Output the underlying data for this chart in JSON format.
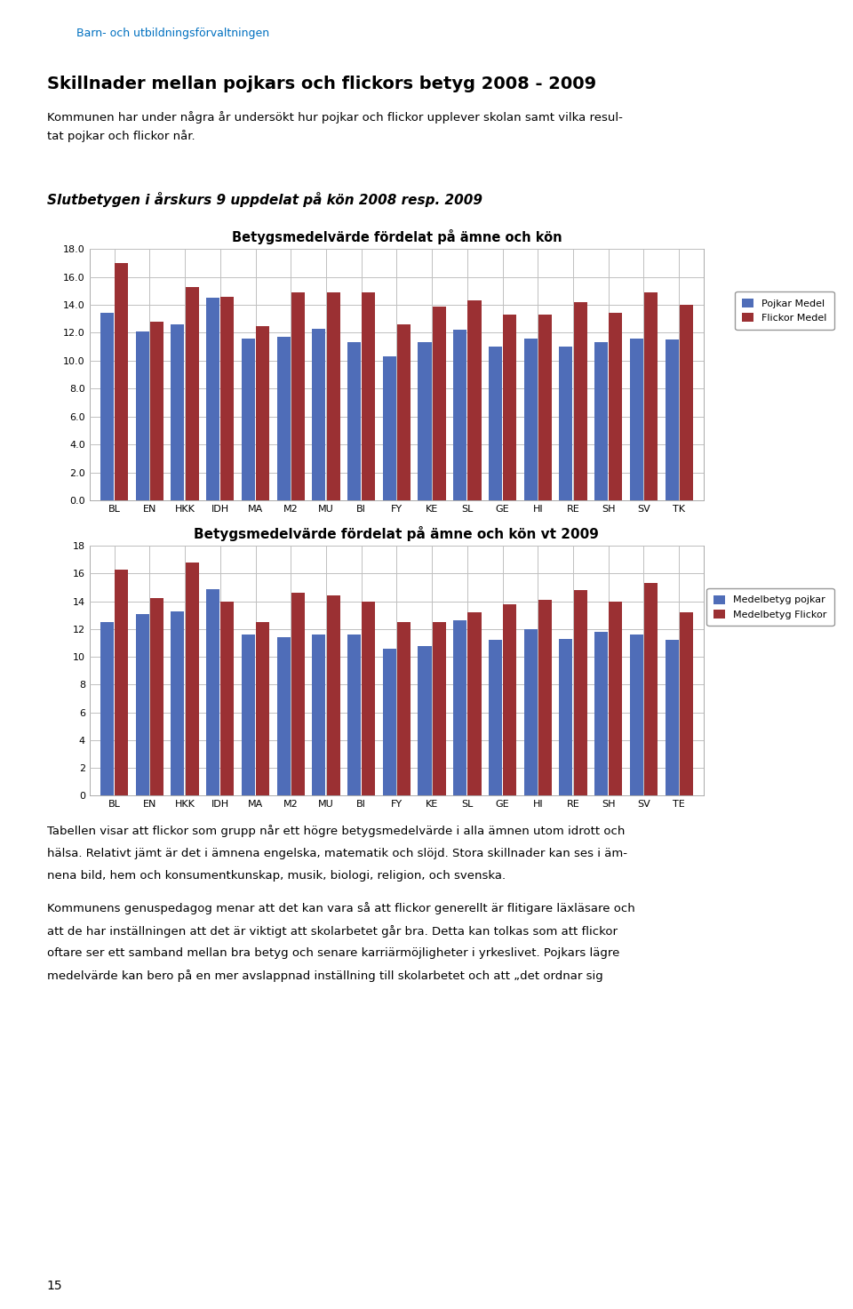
{
  "chart1": {
    "title": "Betygsmedelvärde fördelat på ämne och kön",
    "categories": [
      "BL",
      "EN",
      "HKK",
      "IDH",
      "MA",
      "M2",
      "MU",
      "BI",
      "FY",
      "KE",
      "SL",
      "GE",
      "HI",
      "RE",
      "SH",
      "SV",
      "TK"
    ],
    "pojkar": [
      13.4,
      12.1,
      12.6,
      14.5,
      11.6,
      11.7,
      12.3,
      11.3,
      10.3,
      11.3,
      12.2,
      11.0,
      11.6,
      11.0,
      11.3,
      11.6,
      11.5
    ],
    "flickor": [
      17.0,
      12.8,
      15.3,
      14.6,
      12.5,
      14.9,
      14.9,
      14.9,
      12.6,
      13.9,
      14.3,
      13.3,
      13.3,
      14.2,
      13.4,
      14.9,
      14.0
    ],
    "pojkar_color": "#4F6DB8",
    "flickor_color": "#9B3033",
    "legend_pojkar": "Pojkar Medel",
    "legend_flickor": "Flickor Medel",
    "ylim": [
      0,
      18
    ],
    "yticks": [
      0.0,
      2.0,
      4.0,
      6.0,
      8.0,
      10.0,
      12.0,
      14.0,
      16.0,
      18.0
    ]
  },
  "chart2": {
    "title": "Betygsmedelvärde fördelat på ämne och kön vt 2009",
    "categories": [
      "BL",
      "EN",
      "HKK",
      "IDH",
      "MA",
      "M2",
      "MU",
      "BI",
      "FY",
      "KE",
      "SL",
      "GE",
      "HI",
      "RE",
      "SH",
      "SV",
      "TE"
    ],
    "pojkar": [
      12.5,
      13.1,
      13.3,
      14.9,
      11.6,
      11.4,
      11.6,
      11.6,
      10.6,
      10.8,
      12.6,
      11.2,
      12.0,
      11.3,
      11.8,
      11.6,
      11.2
    ],
    "flickor": [
      16.3,
      14.2,
      16.8,
      14.0,
      12.5,
      14.6,
      14.4,
      14.0,
      12.5,
      12.5,
      13.2,
      13.8,
      14.1,
      14.8,
      14.0,
      15.3,
      13.2
    ],
    "pojkar_color": "#4F6DB8",
    "flickor_color": "#9B3033",
    "legend_pojkar": "Medelbetyg pojkar",
    "legend_flickor": "Medelbetyg Flickor",
    "ylim": [
      0,
      18
    ],
    "yticks": [
      0,
      2,
      4,
      6,
      8,
      10,
      12,
      14,
      16,
      18
    ]
  },
  "header_text": "Barn- och utbildningsförvaltningen",
  "page_title": "Skillnader mellan pojkars och flickors betyg 2008 - 2009",
  "subtitle": "Kommunen har under några år undersökt hur pojkar och flickor upplever skolan samt vilka resul-\ntat pojkar och flickor når.",
  "section_title": "Slutbetygen i årskurs 9 uppdelat på kön 2008 resp. 2009",
  "footer_para1_line1": "Tabellen visar att flickor som grupp når ett högre betygsmedelvärde i alla ämnen utom idrott och",
  "footer_para1_line2": "hälsa. Relativt jämt är det i ämnena engelska, matematik och slöjd. Stora skillnader kan ses i äm-",
  "footer_para1_line3": "nena bild, hem och konsumentkunskap, musik, biologi, religion, och svenska.",
  "footer_para2_line1": "Kommunens genuspedagog menar att det kan vara så att flickor generellt är flitigare läxläsare och",
  "footer_para2_line2": "att de har inställningen att det är viktigt att skolarbetet går bra. Detta kan tolkas som att flickor",
  "footer_para2_line3": "oftare ser ett samband mellan bra betyg och senare karriärmöjligheter i yrkeslivet. Pojkars lägre",
  "footer_para2_line4": "medelvärde kan bero på en mer avslappnad inställning till skolarbetet och att „det ordnar sig",
  "background_color": "#ffffff",
  "chart_bg": "#f0f0f0",
  "grid_color": "#c0c0c0",
  "page_num": "15"
}
